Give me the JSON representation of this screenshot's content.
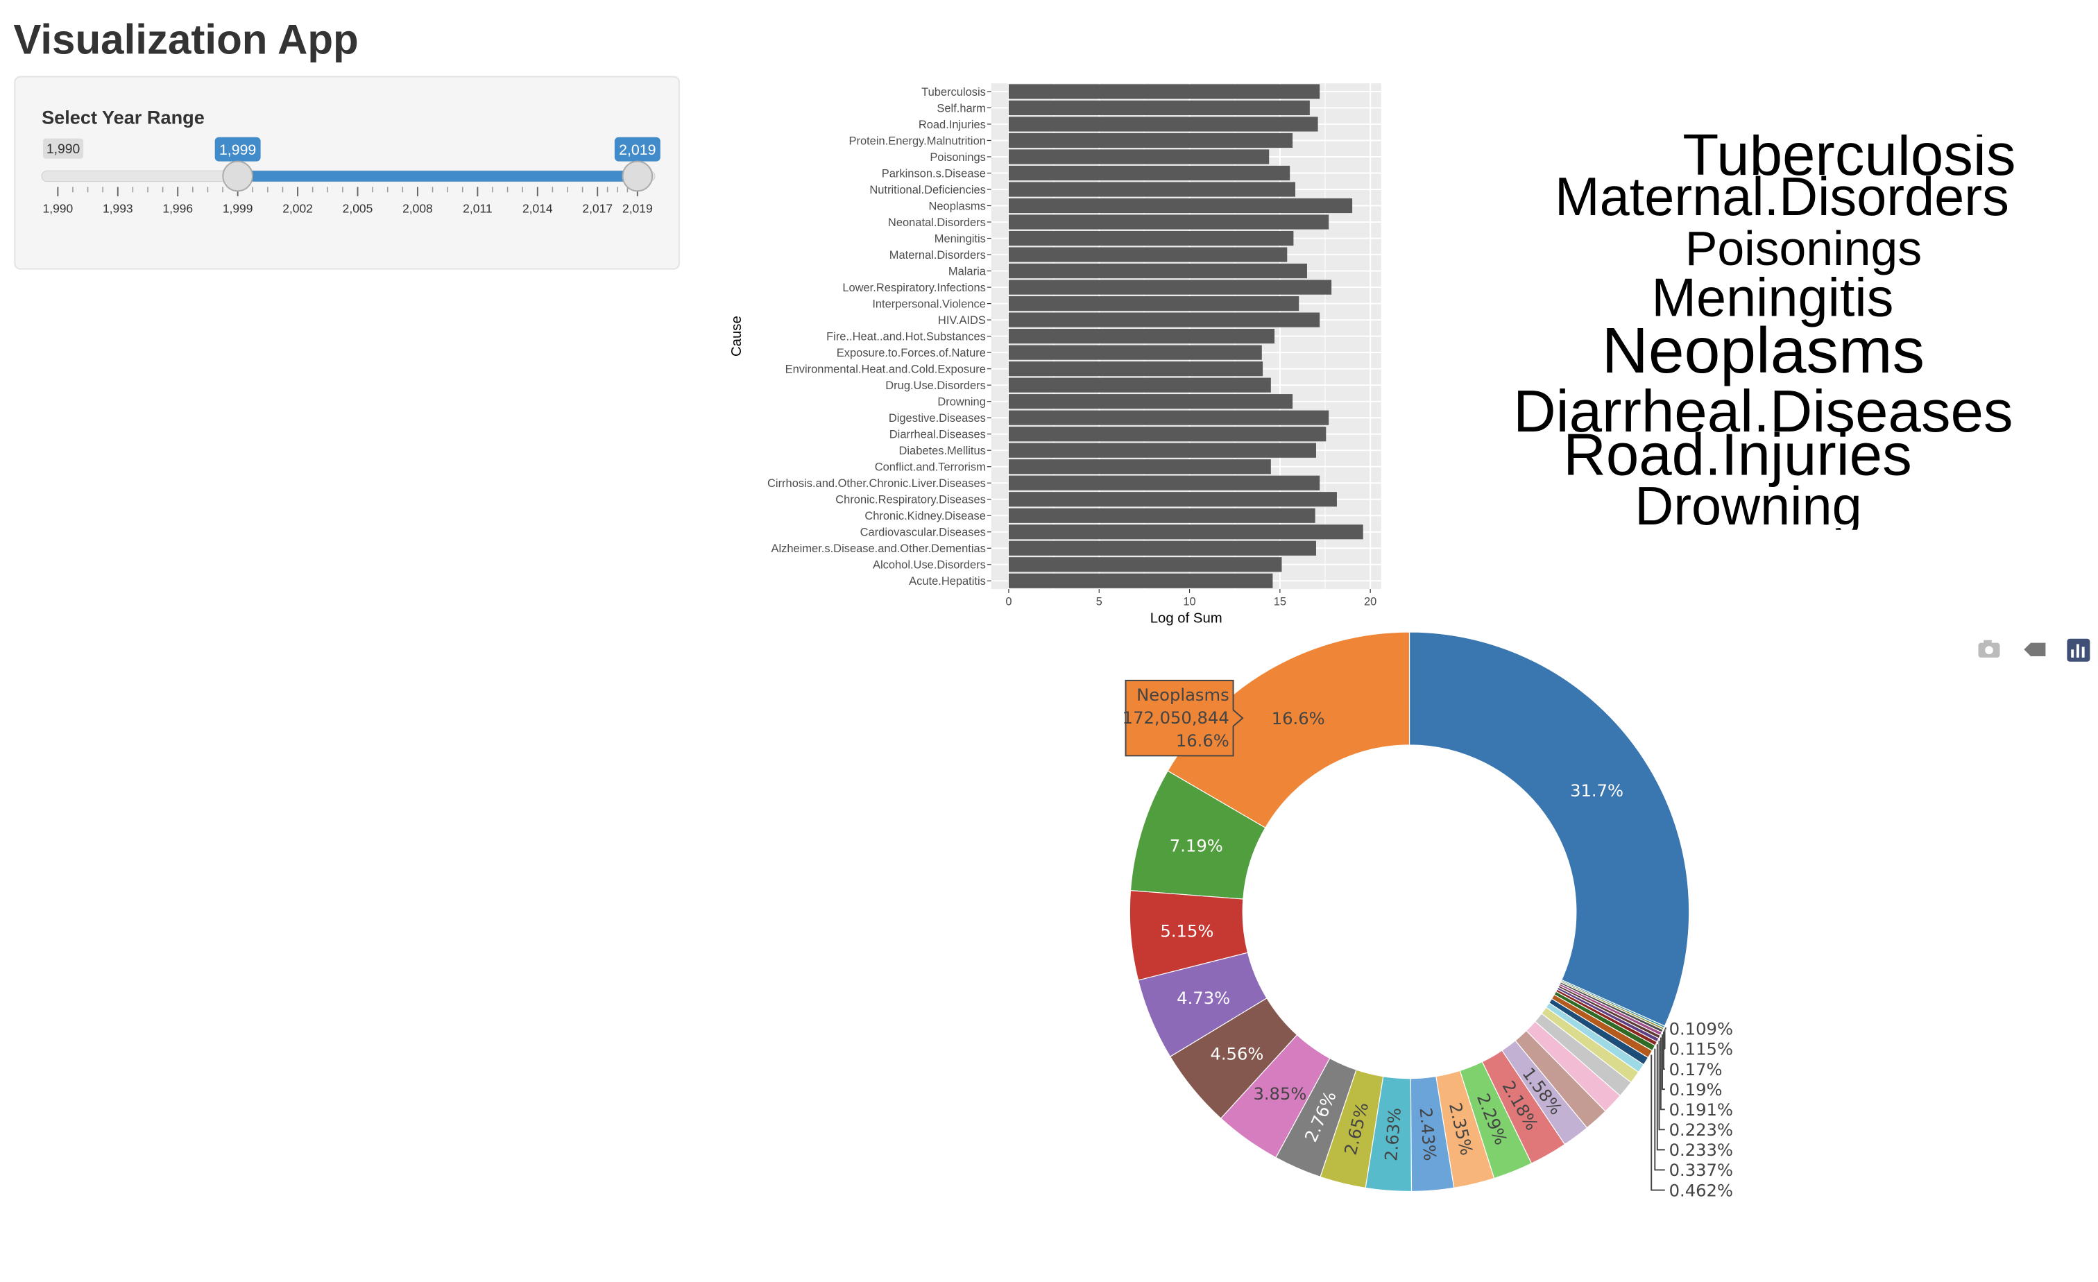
{
  "app_title": "Visualization App",
  "slider": {
    "label": "Select Year Range",
    "min": {
      "value": 1990,
      "label": "1,990"
    },
    "max": 2019,
    "from": {
      "value": 1999,
      "label": "1,999"
    },
    "to": {
      "value": 2019,
      "label": "2,019"
    },
    "ticks": [
      {
        "value": 1990,
        "label": "1,990"
      },
      {
        "value": 1993,
        "label": "1,993"
      },
      {
        "value": 1996,
        "label": "1,996"
      },
      {
        "value": 1999,
        "label": "1,999"
      },
      {
        "value": 2002,
        "label": "2,002"
      },
      {
        "value": 2005,
        "label": "2,005"
      },
      {
        "value": 2008,
        "label": "2,008"
      },
      {
        "value": 2011,
        "label": "2,011"
      },
      {
        "value": 2014,
        "label": "2,014"
      },
      {
        "value": 2017,
        "label": "2,017"
      },
      {
        "value": 2019,
        "label": "2,019"
      }
    ]
  },
  "chart_data": [
    {
      "type": "bar",
      "orientation": "horizontal",
      "x_label": "Log of Sum",
      "y_label": "Cause",
      "color": "#595959",
      "grid": true,
      "categories": [
        "Tuberculosis",
        "Self.harm",
        "Road.Injuries",
        "Protein.Energy.Malnutrition",
        "Poisonings",
        "Parkinson.s.Disease",
        "Nutritional.Deficiencies",
        "Neoplasms",
        "Neonatal.Disorders",
        "Meningitis",
        "Maternal.Disorders",
        "Malaria",
        "Lower.Respiratory.Infections",
        "Interpersonal.Violence",
        "HIV.AIDS",
        "Fire..Heat..and.Hot.Substances",
        "Exposure.to.Forces.of.Nature",
        "Environmental.Heat.and.Cold.Exposure",
        "Drug.Use.Disorders",
        "Drowning",
        "Digestive.Diseases",
        "Diarrheal.Diseases",
        "Diabetes.Mellitus",
        "Conflict.and.Terrorism",
        "Cirrhosis.and.Other.Chronic.Liver.Diseases",
        "Chronic.Respiratory.Diseases",
        "Chronic.Kidney.Disease",
        "Cardiovascular.Diseases",
        "Alzheimer.s.Disease.and.Other.Dementias",
        "Alcohol.Use.Disorders",
        "Acute.Hepatitis"
      ],
      "values": [
        17.2,
        16.65,
        17.1,
        15.7,
        14.4,
        15.55,
        15.85,
        19.0,
        17.7,
        15.75,
        15.4,
        16.5,
        17.85,
        16.05,
        17.2,
        14.7,
        14.0,
        14.05,
        14.5,
        15.7,
        17.7,
        17.55,
        17.0,
        14.5,
        17.2,
        18.15,
        16.95,
        19.6,
        17.0,
        15.1,
        14.6
      ],
      "xlim": [
        -0.97,
        20.6
      ],
      "xticks": [
        0,
        5,
        10,
        15,
        20
      ]
    },
    {
      "type": "wordcloud",
      "words": [
        "Tuberculosis",
        "Maternal.Disorders",
        "Poisonings",
        "Meningitis",
        "Neoplasms",
        "Diarrheal.Diseases",
        "Road.Injuries",
        "Drowning"
      ],
      "color": "#000000"
    },
    {
      "type": "pie",
      "hole": true,
      "direction": "counterclockwise",
      "values": [
        31.7,
        16.6,
        7.19,
        5.15,
        4.73,
        4.56,
        3.85,
        2.76,
        2.65,
        2.63,
        2.43,
        2.35,
        2.29,
        2.18,
        1.58,
        1.41,
        1.22,
        0.98,
        0.72,
        0.52,
        0.47,
        0.462,
        0.337,
        0.233,
        0.223,
        0.191,
        0.19,
        0.17,
        0.115,
        0.109
      ],
      "value_labels": [
        "31.7%",
        "16.6%",
        "7.19%",
        "5.15%",
        "4.73%",
        "4.56%",
        "3.85%",
        "2.76%",
        "2.65%",
        "2.63%",
        "2.43%",
        "2.35%",
        "2.29%",
        "2.18%",
        "1.58%",
        null,
        null,
        null,
        null,
        null,
        null,
        "0.462%",
        "0.337%",
        "0.233%",
        "0.223%",
        "0.191%",
        "0.19%",
        "0.17%",
        "0.115%",
        "0.109%"
      ],
      "colors": [
        "#3a76af",
        "#ef8536",
        "#519e3e",
        "#c53932",
        "#8d6ab8",
        "#84584e",
        "#d57dbf",
        "#7f7f7f",
        "#bcbc45",
        "#58bbcc",
        "#6aa4d9",
        "#f7b57a",
        "#7ed16d",
        "#e0787a",
        "#c3b1d4",
        "#c49c94",
        "#f2bcd4",
        "#c7c7c7",
        "#dbdb8d",
        "#9edae5",
        "#1d4e7a",
        "#b35a1c",
        "#2f6b25",
        "#8c2620",
        "#5d3f84",
        "#5c3a32",
        "#a24d8b",
        "#4d4d4d",
        "#8a8a2a",
        "#2d8b9c"
      ],
      "hover": {
        "name": "Neoplasms",
        "value": 172050844,
        "value_label": "172,050,844",
        "percent_label": "16.6%"
      }
    }
  ]
}
